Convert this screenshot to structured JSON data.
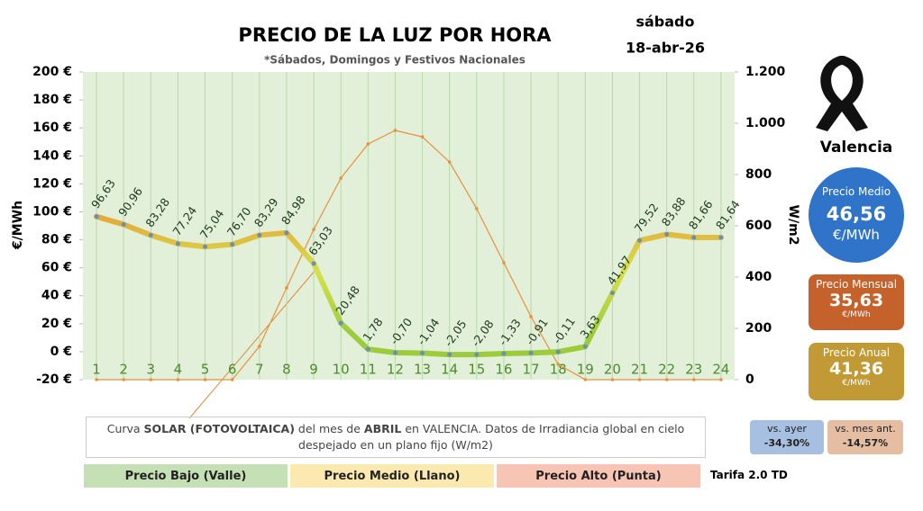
{
  "chart_data": {
    "type": "line",
    "title": "PRECIO DE LA LUZ POR HORA",
    "subtitle": "*Sábados, Domingos y Festivos Nacionales",
    "day": "sábado",
    "date": "18-abr-26",
    "ylabel": "€/MWh",
    "y2label": "W/m2",
    "categories": [
      1,
      2,
      3,
      4,
      5,
      6,
      7,
      8,
      9,
      10,
      11,
      12,
      13,
      14,
      15,
      16,
      17,
      18,
      19,
      20,
      21,
      22,
      23,
      24
    ],
    "series": [
      {
        "color": "#e0702a",
        "values": [
          96.63,
          90.96,
          83.28,
          77.24,
          75.04,
          76.7,
          83.29,
          84.98,
          63.03,
          20.48,
          1.78,
          -0.7,
          -1.04,
          -2.05,
          -2.08,
          -1.33,
          -0.91,
          -0.11,
          3.63,
          41.97,
          79.52,
          83.88,
          81.66,
          81.64
        ],
        "value_labels": [
          "96,63",
          "90,96",
          "83,28",
          "77,24",
          "75,04",
          "76,70",
          "83,29",
          "84,98",
          "63,03",
          "20,48",
          "1,78",
          "-0,70",
          "-1,04",
          "-2,05",
          "-2,08",
          "-1,33",
          "-0,91",
          "-0,11",
          "3,63",
          "41,97",
          "79,52",
          "83,88",
          "81,66",
          "81,64"
        ]
      },
      {
        "color": "#e8913f",
        "axis": "y2",
        "values": [
          0,
          0,
          0,
          0,
          0,
          0,
          130,
          358,
          586,
          786,
          919,
          972,
          947,
          849,
          667,
          456,
          246,
          60,
          0,
          0,
          0,
          0,
          0,
          0
        ]
      }
    ],
    "ylim": [
      -20,
      200
    ],
    "yticks": [
      {
        "value": -20,
        "label": "-20 €"
      },
      {
        "value": 0,
        "label": "0 €"
      },
      {
        "value": 20,
        "label": "20 €"
      },
      {
        "value": 40,
        "label": "40 €"
      },
      {
        "value": 60,
        "label": "60 €"
      },
      {
        "value": 80,
        "label": "80 €"
      },
      {
        "value": 100,
        "label": "100 €"
      },
      {
        "value": 120,
        "label": "120 €"
      },
      {
        "value": 140,
        "label": "140 €"
      },
      {
        "value": 160,
        "label": "160 €"
      },
      {
        "value": 180,
        "label": "180 €"
      },
      {
        "value": 200,
        "label": "200 €"
      }
    ],
    "y2lim": [
      0,
      1200
    ],
    "y2ticks": [
      0,
      200,
      400,
      600,
      800,
      {
        "value": 1000,
        "label": "1.000"
      },
      {
        "value": 1200,
        "label": "1.200"
      }
    ],
    "grid": false
  },
  "city": "Valencia",
  "panels": {
    "medio": {
      "label": "Precio Medio",
      "value": "46,56",
      "unit": "€/MWh"
    },
    "mensual": {
      "label": "Precio Mensual",
      "value": "35,63",
      "unit": "€/MWh"
    },
    "anual": {
      "label": "Precio Anual",
      "value": "41,36",
      "unit": "€/MWh"
    }
  },
  "compare": {
    "ayer": {
      "label": "vs. ayer",
      "value": "-34,30%"
    },
    "mes": {
      "label": "vs. mes ant.",
      "value": "-14,57%"
    }
  },
  "note": [
    "Curva ",
    "SOLAR (FOTOVOLTAICA)",
    " del mes de ",
    "ABRIL",
    " en VALENCIA. Datos de Irradiancia global en cielo despejado en un plano fijo (W/m2)"
  ],
  "bands": [
    "Precio Bajo (Valle)",
    "Precio Medio (Llano)",
    "Precio Alto (Punta)"
  ],
  "tarifa": "Tarifa 2.0 TD"
}
